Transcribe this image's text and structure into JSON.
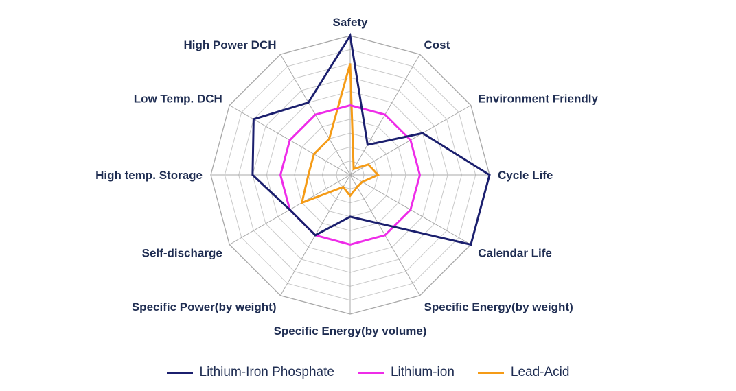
{
  "chart_data": {
    "type": "radar",
    "categories": [
      "Safety",
      "Cost",
      "Environment Friendly",
      "Cycle Life",
      "Calendar Life",
      "Specific Energy(by weight)",
      "Specific Energy(by volume)",
      "Specific Power(by weight)",
      "Self-discharge",
      "High temp. Storage",
      "Low Temp. DCH",
      "High Power DCH"
    ],
    "rlim": [
      0,
      10
    ],
    "grid": true,
    "grid_levels": 10,
    "legend_position": "bottom",
    "series": [
      {
        "name": "Lithium-Iron Phosphate",
        "color": "#1b1f6e",
        "values": [
          10,
          2.5,
          6,
          10,
          10,
          4,
          3,
          5,
          5,
          7,
          8,
          6
        ]
      },
      {
        "name": "Lithium-ion",
        "color": "#ee2ce8",
        "values": [
          5,
          5,
          5,
          5,
          5,
          5,
          5,
          5,
          5,
          5,
          5,
          5
        ]
      },
      {
        "name": "Lead-Acid",
        "color": "#f59b16",
        "values": [
          8,
          0.5,
          1.5,
          2,
          1,
          1,
          1.5,
          1,
          4,
          3,
          3,
          3
        ]
      }
    ]
  }
}
